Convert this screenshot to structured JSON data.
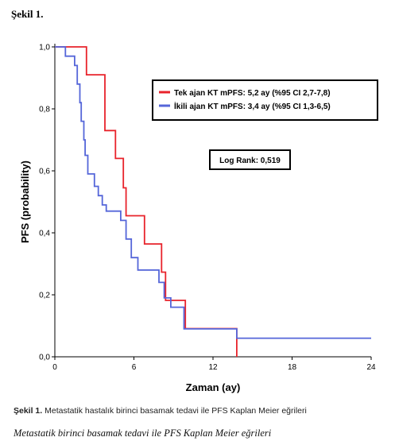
{
  "figure_heading": "Şekil 1.",
  "caption": {
    "label": "Şekil 1.",
    "text": " Metastatik hastalık birinci basamak tedavi ile PFS Kaplan Meier eğrileri"
  },
  "italic_caption": "Metastatik birinci basamak tedavi ile PFS Kaplan Meier eğrileri",
  "chart_data": {
    "type": "line",
    "subtype": "kaplan-meier-step",
    "xlabel": "Zaman (ay)",
    "ylabel": "PFS (probability)",
    "xlim": [
      0,
      24
    ],
    "ylim": [
      0,
      1
    ],
    "x_ticks": [
      0,
      6,
      12,
      18,
      24
    ],
    "y_ticks": [
      0,
      0.2,
      0.4,
      0.6,
      0.8,
      1.0
    ],
    "x_tick_labels": [
      "0",
      "6",
      "12",
      "18",
      "24"
    ],
    "y_tick_labels": [
      "0,0",
      "0,2",
      "0,4",
      "0,6",
      "0,8",
      "1,0"
    ],
    "grid": false,
    "legend_position": "top-right",
    "annotation": "Log Rank: 0,519",
    "series": [
      {
        "name": "Tek ajan KT mPFS: 5,2 ay (%95 CI 2,7-7,8)",
        "color": "#e8232b",
        "points": [
          [
            0,
            1.0
          ],
          [
            2.4,
            1.0
          ],
          [
            2.4,
            0.91
          ],
          [
            3.8,
            0.91
          ],
          [
            3.8,
            0.73
          ],
          [
            4.6,
            0.73
          ],
          [
            4.6,
            0.64
          ],
          [
            5.2,
            0.64
          ],
          [
            5.2,
            0.545
          ],
          [
            5.4,
            0.545
          ],
          [
            5.4,
            0.455
          ],
          [
            6.8,
            0.455
          ],
          [
            6.8,
            0.364
          ],
          [
            8.1,
            0.364
          ],
          [
            8.1,
            0.273
          ],
          [
            8.4,
            0.273
          ],
          [
            8.4,
            0.182
          ],
          [
            9.9,
            0.182
          ],
          [
            9.9,
            0.091
          ],
          [
            13.8,
            0.091
          ],
          [
            13.8,
            0.0
          ]
        ]
      },
      {
        "name": "İkili ajan KT mPFS: 3,4 ay (%95 CI 1,3-6,5)",
        "color": "#5566d9",
        "points": [
          [
            0,
            1.0
          ],
          [
            0.8,
            1.0
          ],
          [
            0.8,
            0.97
          ],
          [
            1.5,
            0.97
          ],
          [
            1.5,
            0.94
          ],
          [
            1.7,
            0.94
          ],
          [
            1.7,
            0.88
          ],
          [
            1.9,
            0.88
          ],
          [
            1.9,
            0.82
          ],
          [
            2.0,
            0.82
          ],
          [
            2.0,
            0.76
          ],
          [
            2.2,
            0.76
          ],
          [
            2.2,
            0.7
          ],
          [
            2.3,
            0.7
          ],
          [
            2.3,
            0.65
          ],
          [
            2.5,
            0.65
          ],
          [
            2.5,
            0.59
          ],
          [
            3.0,
            0.59
          ],
          [
            3.0,
            0.55
          ],
          [
            3.3,
            0.55
          ],
          [
            3.3,
            0.52
          ],
          [
            3.6,
            0.52
          ],
          [
            3.6,
            0.49
          ],
          [
            3.9,
            0.49
          ],
          [
            3.9,
            0.47
          ],
          [
            5.0,
            0.47
          ],
          [
            5.0,
            0.44
          ],
          [
            5.4,
            0.44
          ],
          [
            5.4,
            0.38
          ],
          [
            5.8,
            0.38
          ],
          [
            5.8,
            0.32
          ],
          [
            6.3,
            0.32
          ],
          [
            6.3,
            0.28
          ],
          [
            7.9,
            0.28
          ],
          [
            7.9,
            0.24
          ],
          [
            8.3,
            0.24
          ],
          [
            8.3,
            0.19
          ],
          [
            8.8,
            0.19
          ],
          [
            8.8,
            0.16
          ],
          [
            9.8,
            0.16
          ],
          [
            9.8,
            0.09
          ],
          [
            13.8,
            0.09
          ],
          [
            13.8,
            0.06
          ],
          [
            24.0,
            0.06
          ]
        ]
      }
    ]
  }
}
